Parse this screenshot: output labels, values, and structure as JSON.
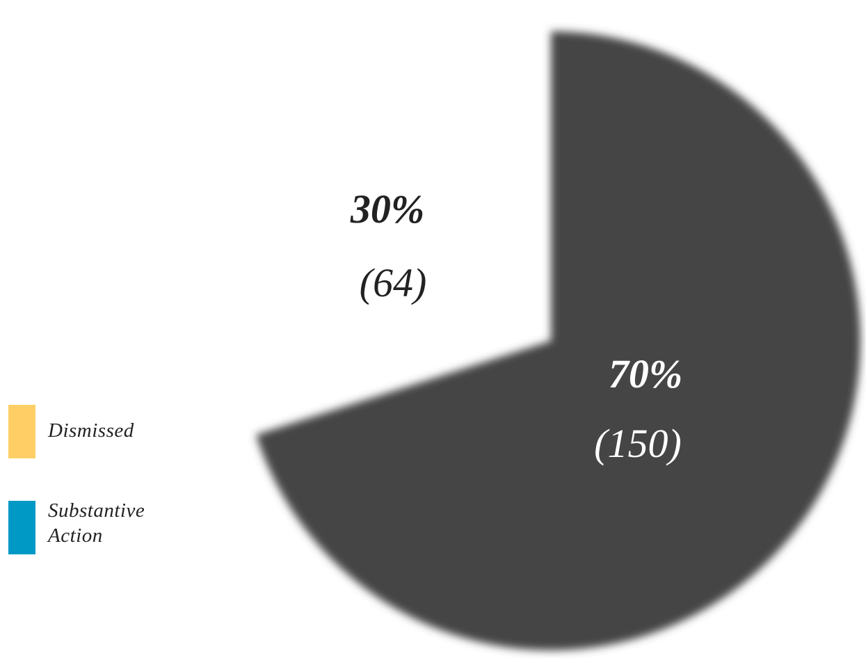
{
  "chart_data": {
    "type": "pie",
    "title": "",
    "slices": [
      {
        "label": "Dismissed",
        "value": 64,
        "percent": "30%",
        "count": "(64)",
        "color": "#ffcf66"
      },
      {
        "label": "Substantive Action",
        "value": 150,
        "percent": "70%",
        "count": "(150)",
        "color": "#0099c6"
      }
    ],
    "legend": {
      "position": "bottom-left",
      "items": [
        {
          "label": "Dismissed",
          "color": "#ffcf66"
        },
        {
          "label": "Substantive Action",
          "color": "#0099c6"
        }
      ]
    },
    "rendered_fill": "#444444",
    "label_color_dark": "#222222",
    "label_color_light": "#ffffff"
  }
}
